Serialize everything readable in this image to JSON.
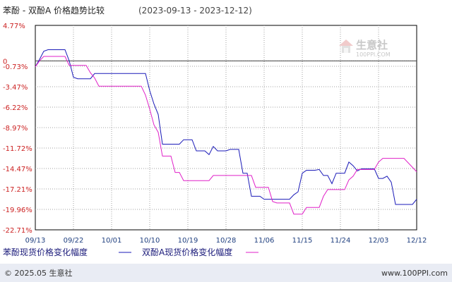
{
  "chart_data": {
    "type": "line",
    "title": "苯酚 - 双酚A 价格趋势比较",
    "date_range": "(2023-09-13 - 2023-12-12)",
    "xlabel": "",
    "ylabel": "",
    "x_ticks": [
      "09/13",
      "09/22",
      "10/01",
      "10/10",
      "10/19",
      "10/28",
      "11/06",
      "11/15",
      "11/24",
      "12/03",
      "12/12"
    ],
    "y_ticks": [
      "4.77%",
      "0",
      "-0.73%",
      "-3.47%",
      "-6.22%",
      "-8.97%",
      "-11.72%",
      "-14.47%",
      "-17.21%",
      "-19.96%",
      "-22.71%"
    ],
    "y_tick_values": [
      4.77,
      0,
      -0.73,
      -3.47,
      -6.22,
      -8.97,
      -11.72,
      -14.47,
      -17.21,
      -19.96,
      -22.71
    ],
    "ylim": [
      -22.71,
      4.77
    ],
    "xlim": [
      "2023-09-13",
      "2023-12-12"
    ],
    "grid": true,
    "legend_position": "bottom",
    "series": [
      {
        "name": "苯酚现货价格变化幅度",
        "color": "#1a1ab8",
        "points": [
          [
            "2023-09-13",
            -0.8
          ],
          [
            "2023-09-14",
            0.2
          ],
          [
            "2023-09-15",
            1.3
          ],
          [
            "2023-09-16",
            1.5
          ],
          [
            "2023-09-20",
            1.5
          ],
          [
            "2023-09-21",
            0.0
          ],
          [
            "2023-09-22",
            -2.2
          ],
          [
            "2023-09-23",
            -2.4
          ],
          [
            "2023-09-26",
            -2.4
          ],
          [
            "2023-09-27",
            -1.7
          ],
          [
            "2023-10-09",
            -1.7
          ],
          [
            "2023-10-10",
            -4.0
          ],
          [
            "2023-10-11",
            -5.8
          ],
          [
            "2023-10-12",
            -7.2
          ],
          [
            "2023-10-13",
            -11.2
          ],
          [
            "2023-10-17",
            -11.2
          ],
          [
            "2023-10-18",
            -10.6
          ],
          [
            "2023-10-20",
            -10.6
          ],
          [
            "2023-10-21",
            -12.1
          ],
          [
            "2023-10-23",
            -12.1
          ],
          [
            "2023-10-24",
            -12.6
          ],
          [
            "2023-10-25",
            -11.5
          ],
          [
            "2023-10-26",
            -12.1
          ],
          [
            "2023-10-28",
            -12.1
          ],
          [
            "2023-10-29",
            -11.9
          ],
          [
            "2023-10-31",
            -11.9
          ],
          [
            "2023-11-01",
            -15.1
          ],
          [
            "2023-11-02",
            -15.1
          ],
          [
            "2023-11-03",
            -18.2
          ],
          [
            "2023-11-05",
            -18.2
          ],
          [
            "2023-11-06",
            -18.6
          ],
          [
            "2023-11-12",
            -18.6
          ],
          [
            "2023-11-13",
            -18.0
          ],
          [
            "2023-11-14",
            -17.6
          ],
          [
            "2023-11-15",
            -15.1
          ],
          [
            "2023-11-16",
            -14.7
          ],
          [
            "2023-11-18",
            -14.7
          ],
          [
            "2023-11-19",
            -14.6
          ],
          [
            "2023-11-20",
            -15.4
          ],
          [
            "2023-11-21",
            -15.4
          ],
          [
            "2023-11-22",
            -16.5
          ],
          [
            "2023-11-23",
            -15.1
          ],
          [
            "2023-11-25",
            -15.1
          ],
          [
            "2023-11-26",
            -13.6
          ],
          [
            "2023-11-27",
            -14.1
          ],
          [
            "2023-11-28",
            -14.8
          ],
          [
            "2023-11-29",
            -14.5
          ],
          [
            "2023-12-02",
            -14.5
          ],
          [
            "2023-12-03",
            -15.8
          ],
          [
            "2023-12-04",
            -15.8
          ],
          [
            "2023-12-05",
            -15.5
          ],
          [
            "2023-12-06",
            -16.3
          ],
          [
            "2023-12-07",
            -19.3
          ],
          [
            "2023-12-11",
            -19.3
          ],
          [
            "2023-12-12",
            -18.6
          ]
        ]
      },
      {
        "name": "双酚A现货价格变化幅度",
        "color": "#e020c8",
        "points": [
          [
            "2023-09-13",
            -0.8
          ],
          [
            "2023-09-14",
            0.0
          ],
          [
            "2023-09-15",
            0.6
          ],
          [
            "2023-09-20",
            0.6
          ],
          [
            "2023-09-21",
            -0.6
          ],
          [
            "2023-09-23",
            -0.6
          ],
          [
            "2023-09-25",
            -0.6
          ],
          [
            "2023-09-26",
            -1.6
          ],
          [
            "2023-09-27",
            -2.3
          ],
          [
            "2023-09-28",
            -3.4
          ],
          [
            "2023-10-06",
            -3.4
          ],
          [
            "2023-10-08",
            -3.4
          ],
          [
            "2023-10-09",
            -4.6
          ],
          [
            "2023-10-10",
            -6.5
          ],
          [
            "2023-10-11",
            -8.6
          ],
          [
            "2023-10-12",
            -9.6
          ],
          [
            "2023-10-13",
            -12.8
          ],
          [
            "2023-10-15",
            -12.8
          ],
          [
            "2023-10-16",
            -15.0
          ],
          [
            "2023-10-17",
            -15.0
          ],
          [
            "2023-10-18",
            -16.1
          ],
          [
            "2023-10-24",
            -16.1
          ],
          [
            "2023-10-25",
            -15.4
          ],
          [
            "2023-11-03",
            -15.4
          ],
          [
            "2023-11-04",
            -17.0
          ],
          [
            "2023-11-07",
            -17.0
          ],
          [
            "2023-11-08",
            -18.9
          ],
          [
            "2023-11-09",
            -19.1
          ],
          [
            "2023-11-12",
            -19.1
          ],
          [
            "2023-11-13",
            -20.6
          ],
          [
            "2023-11-14",
            -20.6
          ],
          [
            "2023-11-15",
            -20.6
          ],
          [
            "2023-11-16",
            -19.7
          ],
          [
            "2023-11-19",
            -19.7
          ],
          [
            "2023-11-20",
            -18.2
          ],
          [
            "2023-11-21",
            -17.3
          ],
          [
            "2023-11-25",
            -17.3
          ],
          [
            "2023-11-26",
            -16.0
          ],
          [
            "2023-11-27",
            -15.5
          ],
          [
            "2023-11-28",
            -14.6
          ],
          [
            "2023-12-02",
            -14.6
          ],
          [
            "2023-12-03",
            -13.6
          ],
          [
            "2023-12-04",
            -13.1
          ],
          [
            "2023-12-09",
            -13.1
          ],
          [
            "2023-12-12",
            -14.9
          ]
        ]
      }
    ]
  },
  "watermark": {
    "brand": "生意社",
    "url": "100PPI.COM"
  },
  "footer": {
    "copyright": "© 2025.05 生意社",
    "site": "www.100PPI.com"
  },
  "colors": {
    "phenol": "#1a1ab8",
    "bpa": "#e020c8",
    "grid": "#a0a0a0",
    "axis_text_y": "#cc2222",
    "axis_text_x": "#1f3f7f",
    "footer_bg": "#e9ecf4"
  }
}
